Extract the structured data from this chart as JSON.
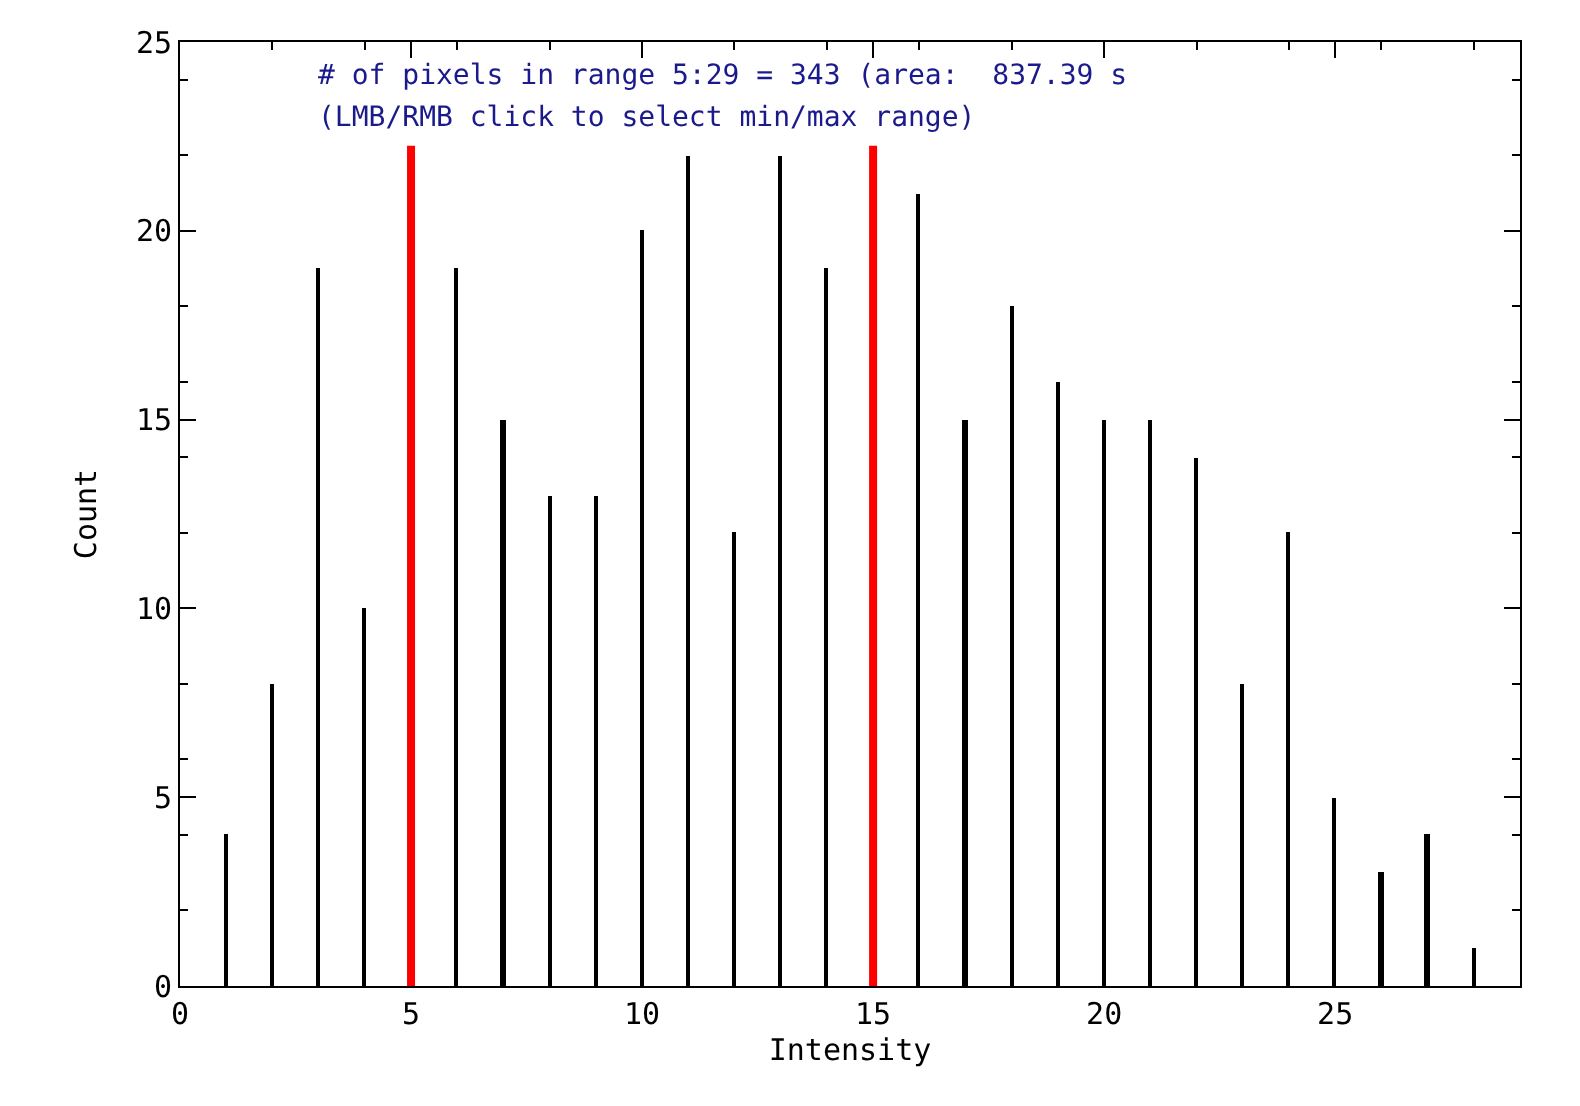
{
  "chart_data": {
    "type": "bar",
    "xlabel": "Intensity",
    "ylabel": "Count",
    "x": [
      1,
      2,
      3,
      4,
      5,
      6,
      7,
      8,
      9,
      10,
      11,
      12,
      13,
      14,
      15,
      16,
      17,
      18,
      19,
      20,
      21,
      22,
      23,
      24,
      25,
      26,
      27,
      28
    ],
    "series": [
      {
        "color": "#000000",
        "values": [
          4,
          8,
          19,
          10,
          null,
          19,
          15,
          13,
          13,
          20,
          22,
          12,
          22,
          19,
          null,
          21,
          15,
          18,
          16,
          15,
          15,
          14,
          8,
          12,
          5,
          3,
          4,
          1
        ]
      }
    ],
    "xlim": [
      0,
      29
    ],
    "xticks": [
      0,
      5,
      10,
      15,
      20,
      25
    ],
    "ylim": [
      0,
      25
    ],
    "yticks": [
      0,
      5,
      10,
      15,
      20,
      25
    ],
    "ref_lines": [
      {
        "axis": "x",
        "value": 5,
        "color": "#ff0000"
      },
      {
        "axis": "x",
        "value": 15,
        "color": "#ff0000"
      }
    ],
    "annotations": [
      "# of pixels in range 5:29 = 343 (area:  837.39 s",
      "(LMB/RMB click to select min/max range)"
    ]
  }
}
